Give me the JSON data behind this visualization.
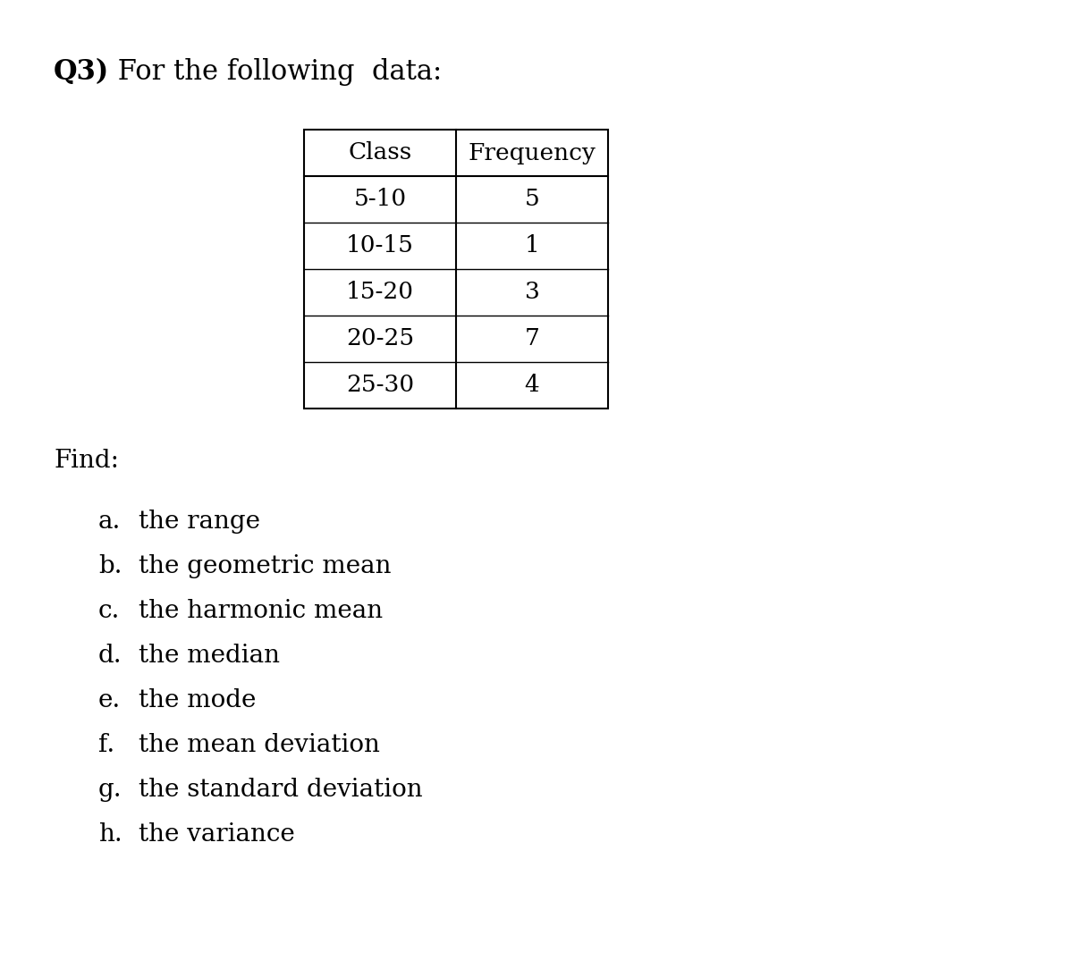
{
  "title_bold": "Q3)",
  "title_rest": " For the following  data:",
  "table_headers": [
    "Class",
    "Frequency"
  ],
  "table_rows": [
    [
      "5-10",
      "5"
    ],
    [
      "10-15",
      "1"
    ],
    [
      "15-20",
      "3"
    ],
    [
      "20-25",
      "7"
    ],
    [
      "25-30",
      "4"
    ]
  ],
  "find_label": "Find:",
  "items": [
    [
      "a.",
      "the range"
    ],
    [
      "b.",
      "the geometric mean"
    ],
    [
      "c.",
      "the harmonic mean"
    ],
    [
      "d.",
      "the median"
    ],
    [
      "e.",
      "the mode"
    ],
    [
      "f.",
      "the mean deviation"
    ],
    [
      "g.",
      "the standard deviation"
    ],
    [
      "h.",
      "the variance"
    ]
  ],
  "bg_color": "#ffffff",
  "text_color": "#000000",
  "title_fontsize": 22,
  "body_fontsize": 20,
  "table_fontsize": 19
}
